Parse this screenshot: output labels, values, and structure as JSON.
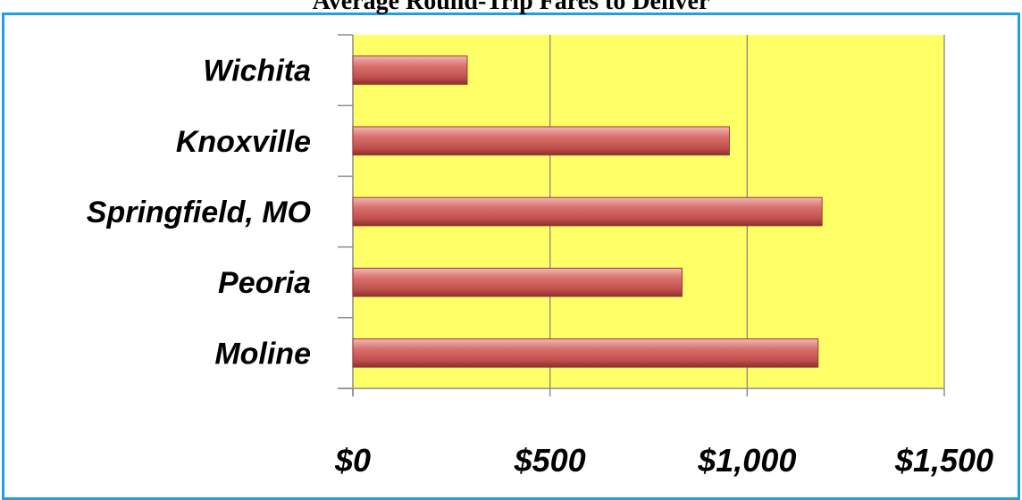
{
  "chart_data": {
    "type": "bar",
    "orientation": "horizontal",
    "title": "Average Round-Trip Fares to Denver",
    "categories": [
      "Wichita",
      "Knoxville",
      "Springfield, MO",
      "Peoria",
      "Moline"
    ],
    "values": [
      290,
      955,
      1190,
      835,
      1180
    ],
    "xlabel": "",
    "ylabel": "",
    "xlim": [
      0,
      1500
    ],
    "x_ticks": [
      0,
      500,
      1000,
      1500
    ],
    "x_tick_labels": [
      "$0",
      "$500",
      "$1,000",
      "$1,500"
    ],
    "grid": true,
    "legend": "none",
    "colors": {
      "bar": "#C0504D",
      "plot_background": "#FFFF66",
      "frame_border": "#1AA3E0",
      "gridline": "#7F7F7F"
    }
  }
}
